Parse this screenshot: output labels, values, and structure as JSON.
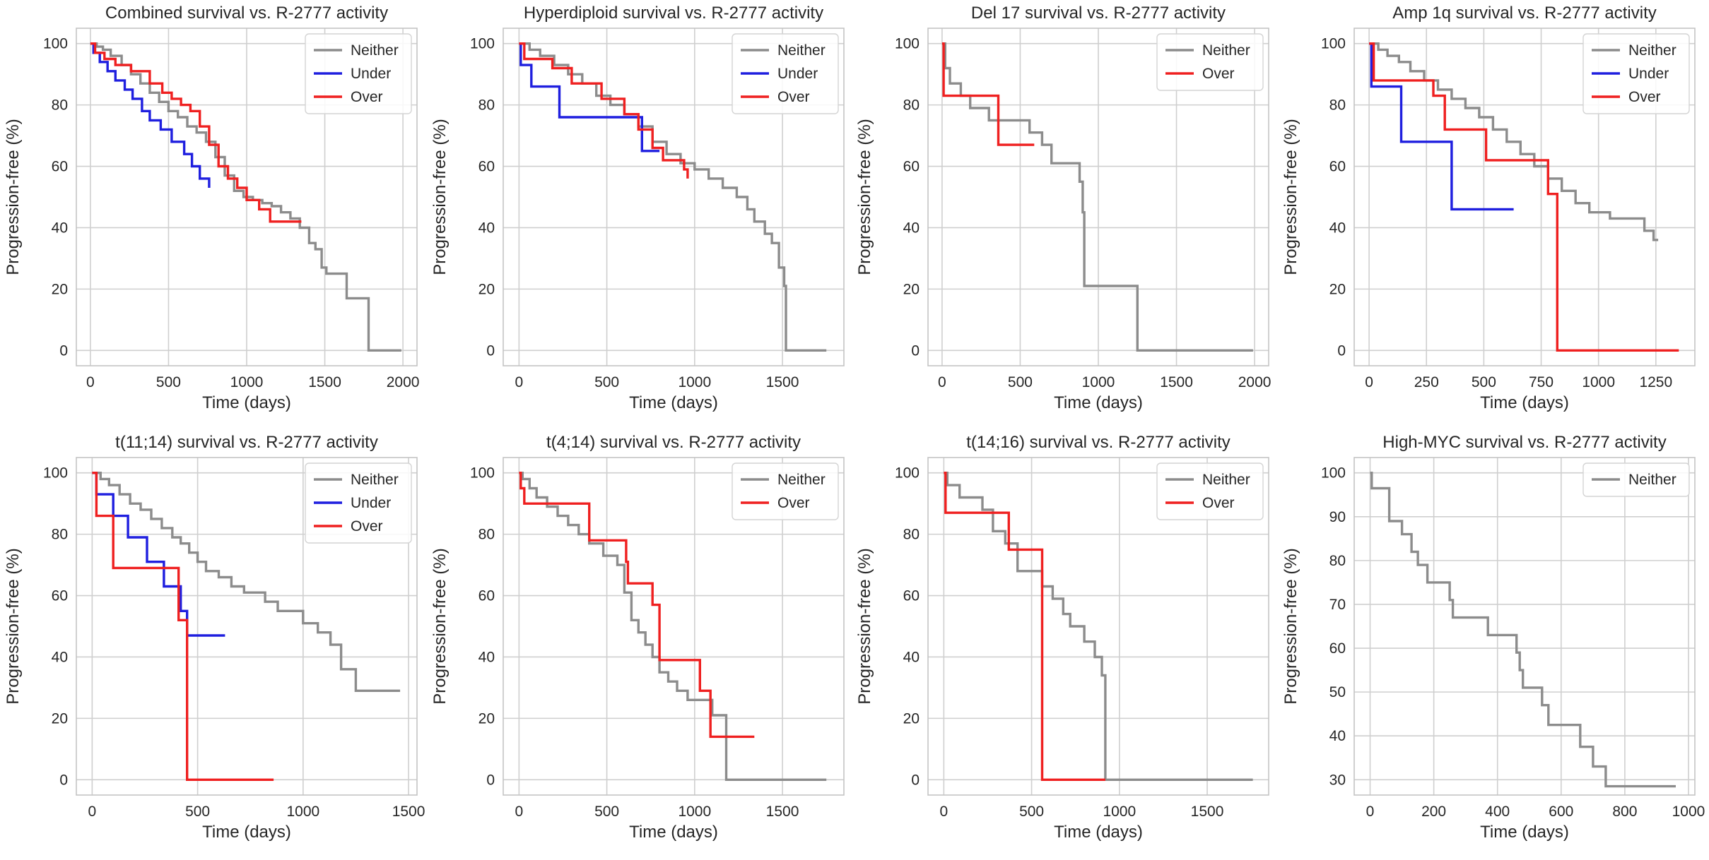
{
  "colors": {
    "Neither": "#8c8c8c",
    "Under": "#1f1fdf",
    "Over": "#ef2020",
    "grid": "#cfcfcf",
    "spine": "#c4c4c4"
  },
  "chart_data": [
    {
      "type": "line",
      "title": "Combined survival vs. R-2777 activity",
      "xlabel": "Time (days)",
      "ylabel": "Progression-free (%)",
      "xlim": [
        -90,
        2090
      ],
      "ylim": [
        -5,
        105
      ],
      "xticks": [
        0,
        500,
        1000,
        1500,
        2000
      ],
      "yticks": [
        0,
        20,
        40,
        60,
        80,
        100
      ],
      "grid": true,
      "legend": "top-right",
      "series": [
        {
          "name": "Neither",
          "x": [
            0,
            40,
            80,
            130,
            200,
            260,
            320,
            380,
            440,
            500,
            560,
            620,
            680,
            740,
            800,
            860,
            920,
            980,
            1040,
            1100,
            1160,
            1220,
            1280,
            1340,
            1400,
            1440,
            1480,
            1510,
            1640,
            1760,
            1780,
            1990
          ],
          "y": [
            100,
            99,
            98,
            96,
            93,
            90,
            87,
            84,
            81,
            78,
            76,
            73,
            71,
            68,
            63,
            57,
            52,
            50,
            49,
            48,
            47,
            45,
            43,
            40,
            35,
            33,
            27,
            25,
            17,
            17,
            0,
            0
          ]
        },
        {
          "name": "Under",
          "x": [
            0,
            20,
            60,
            110,
            160,
            220,
            270,
            330,
            380,
            450,
            520,
            600,
            650,
            700,
            760
          ],
          "y": [
            100,
            97,
            94,
            91,
            88,
            85,
            82,
            78,
            75,
            72,
            68,
            64,
            60,
            56,
            53
          ]
        },
        {
          "name": "Over",
          "x": [
            0,
            30,
            90,
            160,
            260,
            380,
            460,
            520,
            580,
            640,
            700,
            760,
            820,
            880,
            940,
            1000,
            1080,
            1150,
            1350
          ],
          "y": [
            100,
            97,
            95,
            93,
            91,
            87,
            84,
            82,
            80,
            78,
            73,
            67,
            60,
            56,
            53,
            49,
            46,
            42,
            42
          ]
        }
      ]
    },
    {
      "type": "line",
      "title": "Hyperdiploid survival vs. R-2777 activity",
      "xlabel": "Time (days)",
      "ylabel": "Progression-free (%)",
      "xlim": [
        -90,
        1850
      ],
      "ylim": [
        -5,
        105
      ],
      "xticks": [
        0,
        500,
        1000,
        1500
      ],
      "yticks": [
        0,
        20,
        40,
        60,
        80,
        100
      ],
      "grid": true,
      "legend": "top-right",
      "series": [
        {
          "name": "Neither",
          "x": [
            0,
            60,
            120,
            200,
            280,
            360,
            440,
            520,
            600,
            680,
            760,
            840,
            920,
            1000,
            1080,
            1160,
            1240,
            1300,
            1340,
            1400,
            1440,
            1480,
            1500,
            1510,
            1520,
            1750
          ],
          "y": [
            100,
            98,
            96,
            93,
            90,
            87,
            83,
            80,
            77,
            73,
            68,
            64,
            61,
            59,
            56,
            53,
            50,
            46,
            42,
            38,
            35,
            27,
            27,
            21,
            0,
            0
          ]
        },
        {
          "name": "Under",
          "x": [
            0,
            10,
            70,
            230,
            700,
            800
          ],
          "y": [
            100,
            93,
            86,
            76,
            65,
            65
          ]
        },
        {
          "name": "Over",
          "x": [
            0,
            30,
            190,
            300,
            470,
            600,
            680,
            760,
            820,
            940,
            960
          ],
          "y": [
            100,
            95,
            92,
            87,
            82,
            77,
            72,
            66,
            62,
            59,
            56
          ]
        }
      ]
    },
    {
      "type": "line",
      "title": "Del 17 survival vs. R-2777 activity",
      "xlabel": "Time (days)",
      "ylabel": "Progression-free (%)",
      "xlim": [
        -90,
        2090
      ],
      "ylim": [
        -5,
        105
      ],
      "xticks": [
        0,
        500,
        1000,
        1500,
        2000
      ],
      "yticks": [
        0,
        20,
        40,
        60,
        80,
        100
      ],
      "grid": true,
      "legend": "top-right",
      "series": [
        {
          "name": "Neither",
          "x": [
            0,
            20,
            50,
            120,
            180,
            300,
            560,
            640,
            700,
            880,
            900,
            910,
            1250,
            1990
          ],
          "y": [
            100,
            92,
            87,
            83,
            79,
            75,
            71,
            67,
            61,
            55,
            45,
            21,
            0,
            0
          ]
        },
        {
          "name": "Over",
          "x": [
            0,
            10,
            360,
            590
          ],
          "y": [
            100,
            83,
            67,
            67
          ]
        }
      ]
    },
    {
      "type": "line",
      "title": "Amp 1q survival vs. R-2777 activity",
      "xlabel": "Time (days)",
      "ylabel": "Progression-free (%)",
      "xlim": [
        -65,
        1420
      ],
      "ylim": [
        -5,
        105
      ],
      "xticks": [
        0,
        250,
        500,
        750,
        1000,
        1250
      ],
      "yticks": [
        0,
        20,
        40,
        60,
        80,
        100
      ],
      "grid": true,
      "legend": "top-right",
      "series": [
        {
          "name": "Neither",
          "x": [
            0,
            40,
            80,
            130,
            180,
            240,
            300,
            360,
            420,
            480,
            540,
            600,
            660,
            720,
            780,
            840,
            900,
            960,
            1050,
            1200,
            1240,
            1260
          ],
          "y": [
            100,
            98,
            96,
            94,
            91,
            88,
            85,
            82,
            79,
            76,
            72,
            68,
            64,
            60,
            56,
            52,
            48,
            45,
            43,
            39,
            36,
            36
          ]
        },
        {
          "name": "Under",
          "x": [
            0,
            10,
            140,
            360,
            630
          ],
          "y": [
            100,
            86,
            68,
            46,
            46
          ]
        },
        {
          "name": "Over",
          "x": [
            0,
            20,
            280,
            330,
            510,
            570,
            780,
            820,
            1350
          ],
          "y": [
            100,
            88,
            83,
            72,
            62,
            62,
            51,
            0,
            0
          ]
        }
      ]
    },
    {
      "type": "line",
      "title": "t(11;14) survival vs. R-2777 activity",
      "xlabel": "Time (days)",
      "ylabel": "Progression-free (%)",
      "xlim": [
        -75,
        1540
      ],
      "ylim": [
        -5,
        105
      ],
      "xticks": [
        0,
        500,
        1000,
        1500
      ],
      "yticks": [
        0,
        20,
        40,
        60,
        80,
        100
      ],
      "grid": true,
      "legend": "top-right",
      "series": [
        {
          "name": "Neither",
          "x": [
            0,
            40,
            80,
            130,
            180,
            230,
            280,
            330,
            380,
            420,
            460,
            500,
            540,
            600,
            660,
            720,
            820,
            880,
            1000,
            1070,
            1130,
            1180,
            1250,
            1460
          ],
          "y": [
            100,
            98,
            96,
            93,
            90,
            88,
            85,
            82,
            79,
            77,
            74,
            71,
            68,
            66,
            63,
            61,
            58,
            55,
            51,
            48,
            44,
            36,
            29,
            29
          ]
        },
        {
          "name": "Under",
          "x": [
            0,
            20,
            100,
            170,
            260,
            340,
            420,
            450,
            630
          ],
          "y": [
            100,
            93,
            86,
            79,
            71,
            63,
            55,
            47,
            47
          ]
        },
        {
          "name": "Over",
          "x": [
            0,
            20,
            100,
            410,
            450,
            860
          ],
          "y": [
            100,
            86,
            69,
            52,
            0,
            0
          ]
        }
      ]
    },
    {
      "type": "line",
      "title": "t(4;14) survival vs. R-2777 activity",
      "xlabel": "Time (days)",
      "ylabel": "Progression-free (%)",
      "xlim": [
        -90,
        1850
      ],
      "ylim": [
        -5,
        105
      ],
      "xticks": [
        0,
        500,
        1000,
        1500
      ],
      "yticks": [
        0,
        20,
        40,
        60,
        80,
        100
      ],
      "grid": true,
      "legend": "top-right",
      "series": [
        {
          "name": "Neither",
          "x": [
            0,
            20,
            60,
            100,
            160,
            220,
            280,
            340,
            400,
            480,
            560,
            600,
            640,
            680,
            720,
            760,
            800,
            850,
            900,
            960,
            1100,
            1170,
            1180,
            1750
          ],
          "y": [
            100,
            98,
            95,
            92,
            89,
            86,
            83,
            80,
            77,
            73,
            70,
            61,
            52,
            48,
            44,
            40,
            35,
            32,
            29,
            26,
            21,
            21,
            0,
            0
          ]
        },
        {
          "name": "Over",
          "x": [
            0,
            10,
            30,
            380,
            400,
            610,
            620,
            760,
            800,
            1000,
            1030,
            1090,
            1340
          ],
          "y": [
            100,
            95,
            90,
            90,
            78,
            71,
            64,
            57,
            39,
            39,
            29,
            14,
            14
          ]
        }
      ]
    },
    {
      "type": "line",
      "title": "t(14;16) survival vs. R-2777 activity",
      "xlabel": "Time (days)",
      "ylabel": "Progression-free (%)",
      "xlim": [
        -90,
        1850
      ],
      "ylim": [
        -5,
        105
      ],
      "xticks": [
        0,
        500,
        1000,
        1500
      ],
      "yticks": [
        0,
        20,
        40,
        60,
        80,
        100
      ],
      "grid": true,
      "legend": "top-right",
      "series": [
        {
          "name": "Neither",
          "x": [
            0,
            20,
            90,
            220,
            280,
            350,
            420,
            560,
            620,
            680,
            720,
            800,
            860,
            900,
            920,
            1760
          ],
          "y": [
            100,
            96,
            92,
            88,
            81,
            77,
            68,
            63,
            59,
            54,
            50,
            45,
            40,
            34,
            0,
            0
          ]
        },
        {
          "name": "Over",
          "x": [
            0,
            10,
            370,
            540,
            560,
            920
          ],
          "y": [
            100,
            87,
            75,
            75,
            0,
            0
          ]
        }
      ]
    },
    {
      "type": "line",
      "title": "High-MYC survival vs. R-2777 activity",
      "xlabel": "Time (days)",
      "ylabel": "Progression-free (%)",
      "xlim": [
        -50,
        1020
      ],
      "ylim": [
        26.5,
        103.5
      ],
      "xticks": [
        0,
        200,
        400,
        600,
        800,
        1000
      ],
      "yticks": [
        30,
        40,
        50,
        60,
        70,
        80,
        90,
        100
      ],
      "grid": true,
      "legend": "top-right",
      "series": [
        {
          "name": "Neither",
          "x": [
            0,
            5,
            60,
            100,
            130,
            150,
            180,
            250,
            260,
            370,
            460,
            470,
            480,
            540,
            560,
            660,
            700,
            740,
            960
          ],
          "y": [
            100,
            96.5,
            89,
            86,
            82,
            79,
            75,
            71,
            67,
            63,
            59,
            55,
            51,
            47,
            42.5,
            37.5,
            33,
            28.5,
            28.5
          ]
        }
      ]
    }
  ]
}
